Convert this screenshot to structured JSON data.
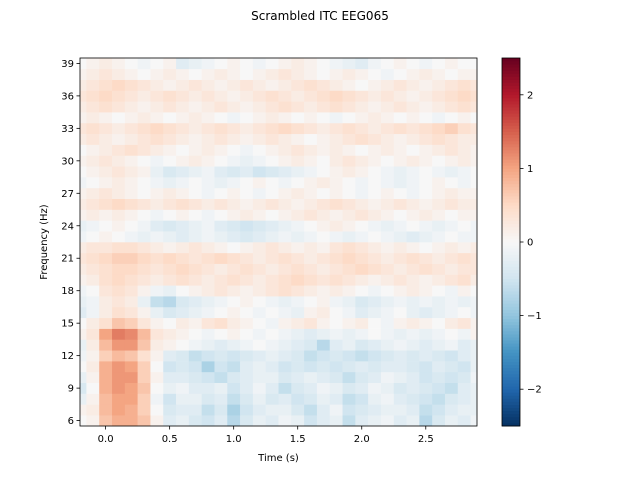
{
  "chart_data": {
    "type": "heatmap",
    "title": "Scrambled ITC EEG065",
    "xlabel": "Time (s)",
    "ylabel": "Frequency (Hz)",
    "xlim": [
      -0.2,
      2.9
    ],
    "ylim": [
      5.5,
      39.5
    ],
    "xticks": [
      0.0,
      0.5,
      1.0,
      1.5,
      2.0,
      2.5
    ],
    "xtick_labels": [
      "0.0",
      "0.5",
      "1.0",
      "1.5",
      "2.0",
      "2.5"
    ],
    "yticks": [
      6,
      9,
      12,
      15,
      18,
      21,
      24,
      27,
      30,
      33,
      36,
      39
    ],
    "ytick_labels": [
      "6",
      "9",
      "12",
      "15",
      "18",
      "21",
      "24",
      "27",
      "30",
      "33",
      "36",
      "39"
    ],
    "colorbar": {
      "cmap": "RdBu_r",
      "vmin": -2.5,
      "vmax": 2.5,
      "ticks": [
        -2,
        -1,
        0,
        1,
        2
      ],
      "tick_labels": [
        "−2",
        "−1",
        "0",
        "1",
        "2"
      ]
    },
    "frequencies": [
      6,
      7,
      8,
      9,
      10,
      11,
      12,
      13,
      14,
      15,
      16,
      17,
      18,
      19,
      20,
      21,
      22,
      23,
      24,
      25,
      26,
      27,
      28,
      29,
      30,
      31,
      32,
      33,
      34,
      35,
      36,
      37,
      38,
      39
    ],
    "times": [
      -0.2,
      -0.1,
      0.0,
      0.1,
      0.2,
      0.3,
      0.4,
      0.5,
      0.6,
      0.7,
      0.8,
      0.9,
      1.0,
      1.1,
      1.2,
      1.3,
      1.4,
      1.5,
      1.6,
      1.7,
      1.8,
      1.9,
      2.0,
      2.1,
      2.2,
      2.3,
      2.4,
      2.5,
      2.6,
      2.7,
      2.8,
      2.9
    ],
    "values_note_rows_by_frequency": "",
    "values": [
      [
        0.0,
        0.1,
        0.7,
        0.9,
        0.9,
        0.7,
        0.1,
        -0.3,
        -0.2,
        -0.4,
        -0.5,
        -0.3,
        -0.7,
        -0.4,
        -0.2,
        -0.3,
        -0.1,
        -0.2,
        -0.5,
        -0.3,
        -0.2,
        -0.6,
        -0.3,
        -0.2,
        -0.1,
        -0.3,
        -0.2,
        -0.7,
        -0.4,
        -0.2,
        -0.3,
        -0.1
      ],
      [
        0.1,
        0.2,
        0.8,
        1.0,
        0.9,
        0.6,
        0.0,
        -0.4,
        -0.3,
        -0.3,
        -0.6,
        -0.4,
        -0.8,
        -0.5,
        -0.3,
        -0.2,
        -0.2,
        -0.4,
        -0.6,
        -0.3,
        -0.1,
        -0.5,
        -0.4,
        -0.3,
        -0.2,
        -0.2,
        -0.3,
        -0.6,
        -0.5,
        -0.3,
        -0.2,
        -0.2
      ],
      [
        -0.2,
        0.1,
        0.8,
        1.0,
        1.0,
        0.6,
        -0.1,
        -0.5,
        -0.2,
        -0.2,
        -0.4,
        -0.3,
        -0.6,
        -0.4,
        -0.2,
        -0.4,
        -0.3,
        -0.5,
        -0.4,
        -0.2,
        -0.3,
        -0.6,
        -0.5,
        -0.2,
        -0.1,
        -0.3,
        -0.4,
        -0.5,
        -0.6,
        -0.4,
        -0.3,
        -0.2
      ],
      [
        -0.4,
        0.0,
        0.9,
        1.1,
        1.0,
        0.7,
        0.0,
        -0.2,
        -0.1,
        -0.3,
        -0.3,
        -0.2,
        -0.5,
        -0.3,
        -0.1,
        -0.3,
        -0.6,
        -0.4,
        -0.3,
        -0.1,
        -0.2,
        -0.4,
        -0.3,
        -0.1,
        -0.2,
        -0.4,
        -0.3,
        -0.4,
        -0.5,
        -0.6,
        -0.3,
        -0.2
      ],
      [
        -0.2,
        0.1,
        0.9,
        1.1,
        1.1,
        0.6,
        0.1,
        -0.3,
        -0.3,
        -0.4,
        -0.5,
        -0.6,
        -0.4,
        -0.3,
        -0.2,
        -0.2,
        -0.4,
        -0.3,
        -0.2,
        -0.3,
        -0.4,
        -0.6,
        -0.4,
        -0.3,
        -0.1,
        -0.2,
        -0.3,
        -0.5,
        -0.4,
        -0.5,
        -0.4,
        -0.1
      ],
      [
        0.0,
        0.2,
        0.9,
        1.1,
        1.0,
        0.6,
        0.0,
        -0.5,
        -0.4,
        -0.5,
        -0.8,
        -0.5,
        -0.6,
        -0.3,
        -0.2,
        -0.3,
        -0.5,
        -0.4,
        -0.5,
        -0.4,
        -0.5,
        -0.4,
        -0.3,
        -0.4,
        -0.3,
        -0.3,
        -0.4,
        -0.5,
        -0.3,
        -0.4,
        -0.5,
        -0.2
      ],
      [
        -0.1,
        0.1,
        0.6,
        0.8,
        0.7,
        0.4,
        0.1,
        -0.3,
        -0.4,
        -0.6,
        -0.5,
        -0.4,
        -0.5,
        -0.4,
        -0.3,
        -0.2,
        -0.3,
        -0.4,
        -0.6,
        -0.5,
        -0.4,
        -0.5,
        -0.6,
        -0.5,
        -0.4,
        -0.3,
        -0.4,
        -0.3,
        -0.4,
        -0.5,
        -0.3,
        -0.2
      ],
      [
        -0.2,
        0.2,
        0.8,
        1.1,
        1.1,
        0.7,
        0.2,
        0.1,
        0.0,
        -0.1,
        -0.2,
        -0.3,
        -0.2,
        -0.1,
        0.0,
        -0.1,
        -0.2,
        -0.3,
        -0.4,
        -0.7,
        -0.3,
        -0.2,
        -0.4,
        -0.3,
        -0.2,
        -0.1,
        -0.2,
        -0.3,
        -0.2,
        -0.1,
        -0.3,
        -0.2
      ],
      [
        0.1,
        0.3,
        1.0,
        1.3,
        1.2,
        0.8,
        0.3,
        0.2,
        0.1,
        0.0,
        -0.1,
        0.0,
        0.1,
        0.0,
        -0.1,
        0.0,
        -0.1,
        -0.2,
        -0.3,
        -0.2,
        -0.1,
        -0.2,
        -0.1,
        0.0,
        -0.1,
        -0.2,
        -0.1,
        -0.2,
        -0.1,
        0.0,
        -0.1,
        0.1
      ],
      [
        0.0,
        0.2,
        0.4,
        0.7,
        0.6,
        0.3,
        0.1,
        0.0,
        0.2,
        0.1,
        0.3,
        0.4,
        0.2,
        0.1,
        0.0,
        -0.1,
        0.1,
        0.2,
        0.3,
        0.1,
        0.0,
        0.1,
        0.2,
        0.0,
        -0.1,
        0.1,
        0.2,
        0.1,
        0.0,
        0.2,
        0.3,
        0.1
      ],
      [
        -0.3,
        -0.1,
        0.2,
        0.4,
        0.3,
        0.1,
        -0.2,
        -0.4,
        -0.3,
        -0.2,
        -0.1,
        0.0,
        0.1,
        0.0,
        -0.1,
        0.0,
        -0.1,
        -0.2,
        0.1,
        0.2,
        0.0,
        -0.1,
        -0.3,
        -0.2,
        -0.1,
        0.0,
        -0.2,
        -0.3,
        -0.2,
        -0.1,
        0.0,
        -0.1
      ],
      [
        -0.2,
        -0.1,
        0.2,
        0.3,
        0.2,
        -0.2,
        -0.6,
        -0.7,
        -0.4,
        -0.3,
        -0.2,
        -0.1,
        0.0,
        0.1,
        0.0,
        -0.1,
        -0.2,
        -0.1,
        0.0,
        0.1,
        -0.1,
        -0.2,
        -0.4,
        -0.3,
        -0.2,
        -0.1,
        -0.2,
        -0.1,
        -0.2,
        -0.1,
        -0.2,
        -0.1
      ],
      [
        -0.1,
        0.0,
        0.3,
        0.4,
        0.3,
        0.1,
        -0.1,
        -0.2,
        0.0,
        0.1,
        0.2,
        0.3,
        0.2,
        0.1,
        0.2,
        0.3,
        0.4,
        0.3,
        0.2,
        0.1,
        0.2,
        0.1,
        0.0,
        -0.1,
        0.0,
        0.1,
        0.2,
        0.1,
        0.0,
        -0.1,
        0.1,
        0.0
      ],
      [
        0.1,
        0.2,
        0.4,
        0.5,
        0.4,
        0.3,
        0.2,
        0.3,
        0.4,
        0.3,
        0.2,
        0.3,
        0.4,
        0.3,
        0.2,
        0.3,
        0.4,
        0.5,
        0.4,
        0.3,
        0.4,
        0.3,
        0.2,
        0.1,
        0.2,
        0.3,
        0.2,
        0.1,
        0.2,
        0.3,
        0.4,
        0.2
      ],
      [
        0.2,
        0.3,
        0.4,
        0.5,
        0.5,
        0.4,
        0.3,
        0.4,
        0.5,
        0.4,
        0.3,
        0.2,
        0.3,
        0.4,
        0.3,
        0.2,
        0.3,
        0.4,
        0.3,
        0.2,
        0.3,
        0.4,
        0.5,
        0.4,
        0.3,
        0.2,
        0.3,
        0.4,
        0.3,
        0.2,
        0.3,
        0.3
      ],
      [
        0.3,
        0.4,
        0.5,
        0.6,
        0.6,
        0.5,
        0.4,
        0.5,
        0.4,
        0.3,
        0.4,
        0.5,
        0.4,
        0.3,
        0.2,
        0.3,
        0.4,
        0.3,
        0.2,
        0.3,
        0.4,
        0.5,
        0.4,
        0.3,
        0.2,
        0.3,
        0.4,
        0.3,
        0.2,
        0.3,
        0.4,
        0.3
      ],
      [
        0.2,
        0.3,
        0.3,
        0.4,
        0.4,
        0.3,
        0.2,
        0.1,
        0.2,
        0.3,
        0.2,
        0.1,
        0.0,
        0.1,
        0.2,
        0.3,
        0.2,
        0.1,
        0.2,
        0.1,
        0.3,
        0.4,
        0.3,
        0.2,
        0.1,
        0.2,
        0.1,
        0.0,
        0.1,
        0.2,
        0.1,
        0.2
      ],
      [
        -0.1,
        0.0,
        0.1,
        0.0,
        -0.1,
        -0.2,
        -0.1,
        -0.2,
        -0.3,
        -0.2,
        -0.1,
        -0.2,
        -0.3,
        -0.4,
        -0.3,
        -0.2,
        -0.1,
        -0.2,
        -0.1,
        0.0,
        -0.1,
        -0.2,
        -0.1,
        0.0,
        -0.1,
        -0.2,
        -0.3,
        -0.2,
        -0.1,
        0.0,
        -0.1,
        -0.1
      ],
      [
        -0.2,
        -0.1,
        0.0,
        0.1,
        0.0,
        -0.1,
        -0.3,
        -0.4,
        -0.3,
        -0.2,
        -0.1,
        -0.3,
        -0.4,
        -0.5,
        -0.4,
        -0.3,
        -0.2,
        -0.1,
        0.0,
        0.1,
        0.2,
        0.1,
        0.0,
        -0.1,
        -0.2,
        -0.1,
        0.0,
        -0.1,
        -0.2,
        -0.1,
        0.0,
        -0.1
      ],
      [
        0.1,
        0.2,
        0.1,
        0.2,
        0.1,
        0.0,
        -0.1,
        0.0,
        0.1,
        0.0,
        -0.1,
        0.0,
        0.1,
        0.2,
        0.1,
        0.0,
        0.1,
        0.2,
        0.3,
        0.2,
        0.1,
        0.2,
        0.3,
        0.2,
        0.1,
        0.0,
        0.1,
        0.2,
        0.1,
        0.0,
        0.1,
        0.1
      ],
      [
        0.2,
        0.3,
        0.4,
        0.5,
        0.4,
        0.3,
        0.2,
        0.3,
        0.4,
        0.3,
        0.2,
        0.3,
        0.2,
        0.1,
        0.2,
        0.3,
        0.2,
        0.1,
        0.2,
        0.3,
        0.4,
        0.3,
        0.2,
        0.1,
        0.2,
        0.3,
        0.2,
        0.1,
        0.2,
        0.3,
        0.2,
        0.2
      ],
      [
        0.1,
        0.2,
        0.3,
        0.2,
        0.1,
        0.0,
        0.1,
        0.2,
        0.1,
        0.0,
        -0.1,
        0.0,
        0.1,
        0.0,
        -0.1,
        0.0,
        0.1,
        0.2,
        0.1,
        0.0,
        0.1,
        0.0,
        -0.1,
        0.0,
        0.1,
        0.0,
        -0.1,
        0.0,
        0.1,
        0.2,
        0.1,
        0.1
      ],
      [
        -0.1,
        0.0,
        0.1,
        0.2,
        0.1,
        0.0,
        -0.1,
        -0.2,
        -0.1,
        0.0,
        -0.1,
        -0.2,
        -0.1,
        0.0,
        0.1,
        0.0,
        -0.1,
        0.0,
        0.1,
        0.2,
        0.1,
        0.0,
        -0.1,
        0.0,
        -0.1,
        -0.2,
        -0.1,
        0.0,
        0.1,
        0.0,
        -0.1,
        0.0
      ],
      [
        0.0,
        0.1,
        0.2,
        0.3,
        0.2,
        0.1,
        -0.2,
        -0.4,
        -0.3,
        -0.2,
        -0.1,
        -0.3,
        -0.4,
        -0.3,
        -0.5,
        -0.4,
        -0.3,
        -0.2,
        -0.1,
        0.0,
        0.1,
        0.2,
        0.1,
        0.0,
        -0.1,
        -0.2,
        -0.1,
        0.0,
        -0.1,
        -0.2,
        -0.1,
        0.0
      ],
      [
        0.1,
        0.2,
        0.3,
        0.2,
        0.1,
        0.0,
        -0.1,
        0.0,
        0.1,
        0.2,
        0.1,
        0.0,
        -0.1,
        -0.2,
        -0.1,
        0.0,
        0.1,
        0.2,
        0.1,
        0.0,
        0.2,
        0.3,
        0.2,
        0.1,
        0.0,
        0.1,
        0.2,
        0.1,
        0.0,
        0.1,
        0.2,
        0.1
      ],
      [
        0.0,
        0.1,
        0.2,
        0.3,
        0.4,
        0.3,
        0.2,
        0.1,
        0.0,
        0.1,
        0.2,
        0.1,
        0.0,
        -0.1,
        0.0,
        0.1,
        0.2,
        0.3,
        0.2,
        0.1,
        0.2,
        0.1,
        0.0,
        0.1,
        0.2,
        0.1,
        0.0,
        0.1,
        0.2,
        0.3,
        0.2,
        0.1
      ],
      [
        0.2,
        0.3,
        0.2,
        0.1,
        0.2,
        0.3,
        0.4,
        0.3,
        0.2,
        0.1,
        0.2,
        0.3,
        0.2,
        0.1,
        0.2,
        0.3,
        0.2,
        0.1,
        0.0,
        0.1,
        0.2,
        0.3,
        0.4,
        0.3,
        0.2,
        0.1,
        0.2,
        0.3,
        0.4,
        0.3,
        0.2,
        0.2
      ],
      [
        0.3,
        0.4,
        0.3,
        0.2,
        0.3,
        0.4,
        0.5,
        0.4,
        0.3,
        0.2,
        0.3,
        0.4,
        0.3,
        0.2,
        0.3,
        0.4,
        0.5,
        0.4,
        0.3,
        0.2,
        0.3,
        0.4,
        0.3,
        0.2,
        0.3,
        0.4,
        0.3,
        0.4,
        0.5,
        0.6,
        0.4,
        0.3
      ],
      [
        0.1,
        0.2,
        0.1,
        0.0,
        0.1,
        0.2,
        0.1,
        0.0,
        0.1,
        0.2,
        0.1,
        0.0,
        -0.1,
        0.0,
        0.1,
        0.2,
        0.1,
        0.0,
        0.1,
        0.0,
        -0.1,
        0.0,
        0.1,
        0.2,
        0.1,
        0.0,
        0.1,
        0.0,
        -0.1,
        0.0,
        0.1,
        0.0
      ],
      [
        0.2,
        0.3,
        0.4,
        0.3,
        0.2,
        0.1,
        0.2,
        0.3,
        0.2,
        0.1,
        0.2,
        0.3,
        0.2,
        0.1,
        0.2,
        0.3,
        0.4,
        0.3,
        0.2,
        0.3,
        0.4,
        0.3,
        0.2,
        0.1,
        0.2,
        0.3,
        0.2,
        0.1,
        0.2,
        0.3,
        0.4,
        0.3
      ],
      [
        0.3,
        0.4,
        0.5,
        0.4,
        0.3,
        0.2,
        0.3,
        0.4,
        0.3,
        0.2,
        0.3,
        0.2,
        0.1,
        0.2,
        0.3,
        0.4,
        0.3,
        0.2,
        0.3,
        0.4,
        0.5,
        0.4,
        0.3,
        0.2,
        0.3,
        0.2,
        0.1,
        0.2,
        0.3,
        0.4,
        0.5,
        0.4
      ],
      [
        0.2,
        0.3,
        0.4,
        0.5,
        0.4,
        0.3,
        0.2,
        0.1,
        0.2,
        0.3,
        0.2,
        0.1,
        0.2,
        0.3,
        0.2,
        0.1,
        0.2,
        0.3,
        0.4,
        0.3,
        0.2,
        0.1,
        0.0,
        0.1,
        0.2,
        0.3,
        0.2,
        0.1,
        0.2,
        0.3,
        0.4,
        0.3
      ],
      [
        0.1,
        0.2,
        0.3,
        0.2,
        0.1,
        0.0,
        0.1,
        0.2,
        0.1,
        0.0,
        0.1,
        0.2,
        0.1,
        0.0,
        0.1,
        0.2,
        0.3,
        0.2,
        0.1,
        0.0,
        0.1,
        0.2,
        0.1,
        0.0,
        -0.1,
        0.0,
        0.1,
        0.2,
        0.1,
        0.0,
        0.1,
        0.1
      ],
      [
        0.0,
        0.1,
        0.2,
        0.1,
        0.0,
        -0.1,
        0.0,
        0.1,
        -0.3,
        -0.2,
        -0.1,
        0.0,
        0.1,
        0.0,
        -0.1,
        0.0,
        0.1,
        0.2,
        0.1,
        0.0,
        -0.1,
        -0.2,
        -0.3,
        -0.1,
        0.0,
        0.1,
        0.0,
        -0.1,
        0.0,
        0.1,
        0.0,
        0.0
      ]
    ]
  }
}
